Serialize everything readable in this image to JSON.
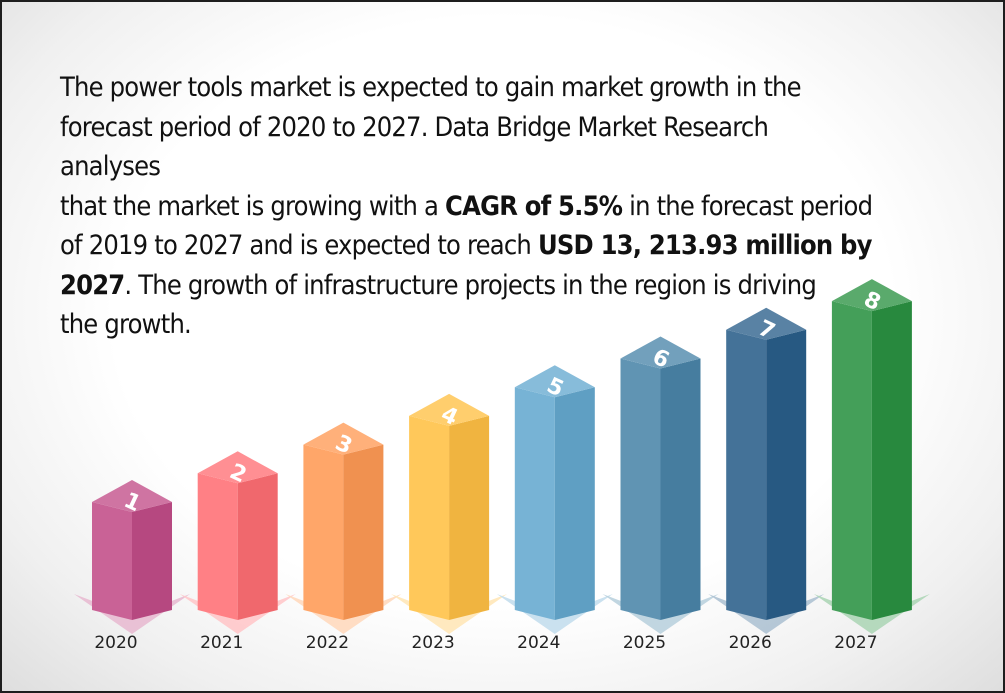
{
  "intro": {
    "p1": "The power tools market is expected to gain market growth in the\nforecast period of 2020 to 2027. Data Bridge Market Research analyses\nthat the market is growing with a ",
    "b1": "CAGR of 5.5%",
    "p2": " in the forecast period\nof 2019 to 2027 and is expected to reach  ",
    "b2": "USD 13, 213.93 million by\n2027",
    "p3": ". The growth of infrastructure projects in the  region is driving\nthe growth."
  },
  "chart_data": {
    "type": "bar",
    "categories": [
      "2020",
      "2021",
      "2022",
      "2023",
      "2024",
      "2025",
      "2026",
      "2027"
    ],
    "values": [
      1,
      2,
      3,
      4,
      5,
      6,
      7,
      8
    ],
    "bar_labels": [
      "1",
      "2",
      "3",
      "4",
      "5",
      "6",
      "7",
      "8"
    ],
    "colors": [
      "#c24d88",
      "#ff6f74",
      "#ff9a55",
      "#ffc044",
      "#65a9cf",
      "#4a85a9",
      "#2a5f8a",
      "#2b9242"
    ],
    "grid": false,
    "legend": "none"
  }
}
